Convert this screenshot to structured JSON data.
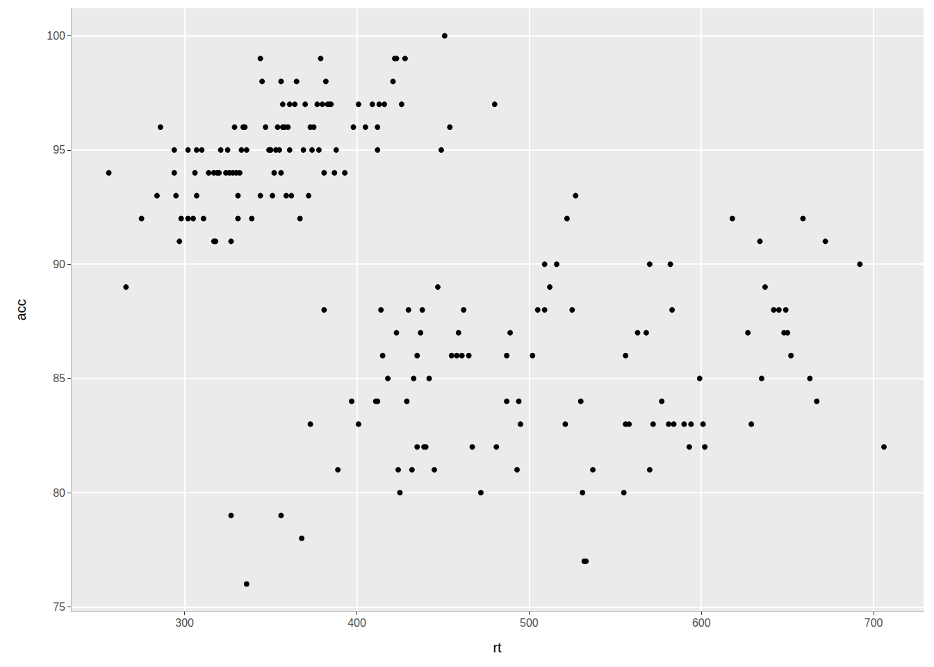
{
  "chart_data": {
    "type": "scatter",
    "xlabel": "rt",
    "ylabel": "acc",
    "x": [
      256,
      266,
      275,
      284,
      286,
      294,
      294,
      295,
      297,
      298,
      302,
      302,
      305,
      306,
      307,
      307,
      310,
      311,
      314,
      317,
      317,
      318,
      319,
      320,
      321,
      324,
      325,
      326,
      327,
      328,
      329,
      330,
      331,
      331,
      332,
      333,
      334,
      335,
      336,
      339,
      344,
      344,
      345,
      347,
      349,
      350,
      351,
      352,
      353,
      354,
      355,
      356,
      356,
      357,
      357,
      358,
      359,
      360,
      361,
      361,
      362,
      364,
      365,
      367,
      369,
      370,
      372,
      373,
      374,
      375,
      377,
      378,
      379,
      380,
      381,
      382,
      383,
      384,
      385,
      387,
      388,
      393,
      398,
      401,
      405,
      409,
      412,
      412,
      413,
      416,
      421,
      422,
      423,
      426,
      428,
      449,
      451,
      454,
      480,
      327,
      336,
      356,
      368,
      373,
      381,
      389,
      397,
      401,
      411,
      412,
      414,
      415,
      418,
      423,
      424,
      425,
      429,
      430,
      432,
      433,
      435,
      435,
      437,
      438,
      439,
      440,
      442,
      445,
      447,
      455,
      458,
      459,
      461,
      462,
      465,
      467,
      472,
      481,
      487,
      487,
      489,
      493,
      494,
      495,
      502,
      505,
      509,
      509,
      512,
      516,
      521,
      522,
      525,
      527,
      530,
      531,
      532,
      533,
      537,
      555,
      556,
      556,
      558,
      563,
      568,
      570,
      570,
      572,
      577,
      581,
      582,
      583,
      584,
      590,
      593,
      594,
      599,
      601,
      602,
      618,
      627,
      629,
      634,
      635,
      637,
      642,
      645,
      648,
      649,
      650,
      652,
      659,
      663,
      667,
      672,
      692,
      706
    ],
    "values": [
      94,
      89,
      92,
      93,
      96,
      95,
      94,
      93,
      91,
      92,
      95,
      92,
      92,
      94,
      95,
      93,
      95,
      92,
      94,
      94,
      91,
      91,
      94,
      94,
      95,
      94,
      95,
      94,
      91,
      94,
      96,
      94,
      92,
      93,
      94,
      95,
      96,
      96,
      95,
      92,
      99,
      93,
      98,
      96,
      95,
      95,
      93,
      94,
      95,
      96,
      95,
      98,
      94,
      97,
      96,
      96,
      93,
      96,
      97,
      95,
      93,
      97,
      98,
      92,
      95,
      97,
      93,
      96,
      95,
      96,
      97,
      95,
      99,
      97,
      94,
      98,
      97,
      97,
      97,
      94,
      95,
      94,
      96,
      97,
      96,
      97,
      95,
      96,
      97,
      97,
      98,
      99,
      99,
      97,
      99,
      95,
      100,
      96,
      97,
      79,
      76,
      79,
      78,
      83,
      88,
      81,
      84,
      83,
      84,
      84,
      88,
      86,
      85,
      87,
      81,
      80,
      84,
      88,
      81,
      85,
      86,
      82,
      87,
      88,
      82,
      82,
      85,
      81,
      89,
      86,
      86,
      87,
      86,
      88,
      86,
      82,
      80,
      82,
      86,
      84,
      87,
      81,
      84,
      83,
      86,
      88,
      88,
      90,
      89,
      90,
      83,
      92,
      88,
      93,
      84,
      80,
      77,
      77,
      81,
      80,
      86,
      83,
      83,
      87,
      87,
      90,
      81,
      83,
      84,
      83,
      90,
      88,
      83,
      83,
      82,
      83,
      85,
      83,
      82,
      92,
      87,
      83,
      91,
      85,
      89,
      88,
      88,
      87,
      88,
      87,
      86,
      92,
      85,
      84,
      91,
      90,
      82
    ],
    "xlim": [
      234,
      729
    ],
    "xticks": [
      300,
      400,
      500,
      600,
      700
    ],
    "ylim": [
      74.8,
      101.2
    ],
    "yticks": [
      75,
      80,
      85,
      90,
      95,
      100
    ],
    "grid": true,
    "color": "#000000",
    "marker": "circle"
  }
}
